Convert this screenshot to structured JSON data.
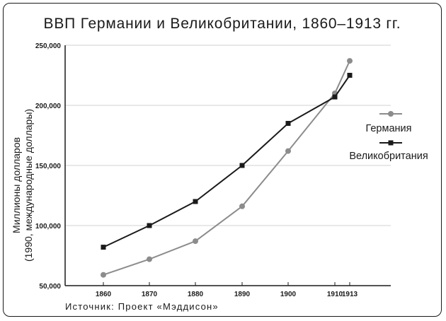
{
  "chart_data": {
    "type": "line",
    "title": "ВВП Германии и Великобритании, 1860–1913 гг.",
    "ylabel_line1": "Миллионы долларов",
    "ylabel_line2": "(1990, международные доллары)",
    "xlabel": "",
    "source": "Источник: Проект «Мэддисон»",
    "x": [
      1860,
      1870,
      1880,
      1890,
      1900,
      1910,
      1913
    ],
    "x_tick_labels": [
      "1860",
      "1870",
      "1880",
      "1890",
      "1900",
      "1910",
      "1913"
    ],
    "y_tick_values": [
      50000,
      100000,
      150000,
      200000,
      250000
    ],
    "y_tick_labels": [
      "50,000",
      "100,000",
      "150,000",
      "200,000",
      "250,000"
    ],
    "xlim": [
      1860,
      1913
    ],
    "ylim": [
      50000,
      250000
    ],
    "grid": "horizontal",
    "legend_position": "right",
    "series": [
      {
        "name": "Германия",
        "color": "#8c8c8c",
        "marker": "circle",
        "values": [
          59000,
          72000,
          87000,
          116000,
          162000,
          210000,
          237000
        ]
      },
      {
        "name": "Великобритания",
        "color": "#1a1a1a",
        "marker": "square",
        "values": [
          82000,
          100000,
          120000,
          150000,
          185000,
          207000,
          225000
        ]
      }
    ]
  }
}
